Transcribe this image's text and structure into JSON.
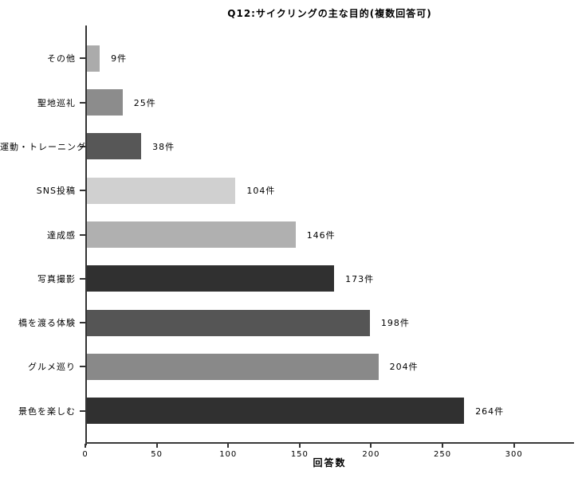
{
  "title": "Q12:サイクリングの主な目的(複数回答可)",
  "colors": {
    "background": "#ffffff",
    "axis": "#333333",
    "text": "#000000"
  },
  "chart_data": {
    "type": "bar",
    "orientation": "horizontal",
    "title": "Q12:サイクリングの主な目的(複数回答可)",
    "xlabel": "回答数",
    "ylabel": "",
    "unit": "件",
    "order": "top-to-bottom",
    "categories": [
      "その他",
      "聖地巡礼",
      "運動・トレーニング",
      "SNS投稿",
      "達成感",
      "写真撮影",
      "橋を渡る体験",
      "グルメ巡り",
      "景色を楽しむ"
    ],
    "values": [
      9,
      25,
      38,
      104,
      146,
      173,
      198,
      204,
      264
    ],
    "value_labels": [
      "9件",
      "25件",
      "38件",
      "104件",
      "146件",
      "173件",
      "198件",
      "204件",
      "264件"
    ],
    "bar_colors": [
      "#ababab",
      "#8c8c8c",
      "#575757",
      "#d0d0d0",
      "#b0b0b0",
      "#303030",
      "#555555",
      "#898989",
      "#303030"
    ],
    "x_ticks": [
      0,
      50,
      100,
      150,
      200,
      250,
      300
    ],
    "xlim": [
      0,
      342
    ],
    "grid": false,
    "legend": false
  }
}
